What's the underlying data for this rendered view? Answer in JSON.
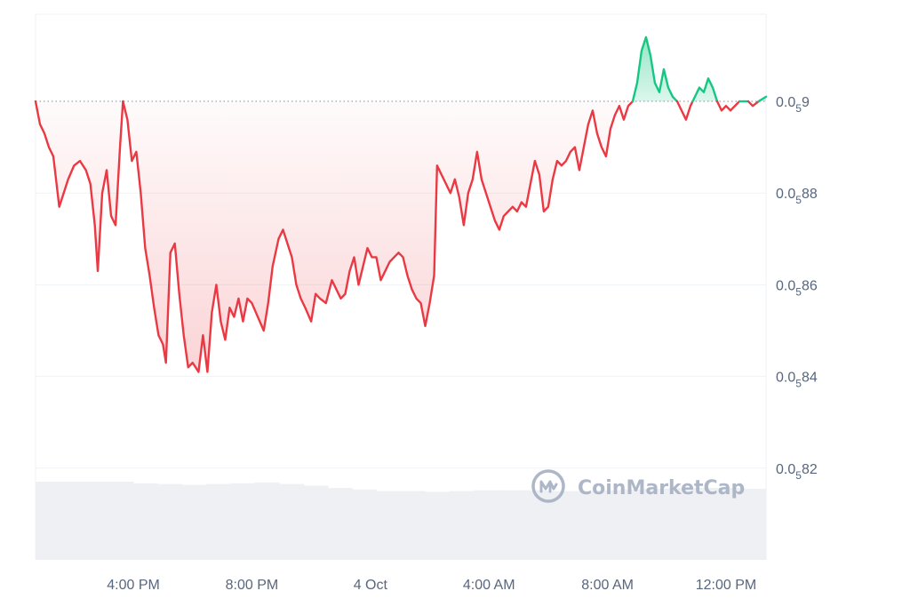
{
  "chart_data": {
    "type": "area",
    "title": "",
    "xlabel": "",
    "ylabel": "",
    "baseline": 9e-07,
    "y_tick_labels": [
      {
        "prefix": "0.0",
        "sub": "5",
        "suffix": "9",
        "value": 9e-07
      },
      {
        "prefix": "0.0",
        "sub": "5",
        "suffix": "88",
        "value": 8.8e-07
      },
      {
        "prefix": "0.0",
        "sub": "5",
        "suffix": "86",
        "value": 8.6e-07
      },
      {
        "prefix": "0.0",
        "sub": "5",
        "suffix": "84",
        "value": 8.4e-07
      },
      {
        "prefix": "0.0",
        "sub": "5",
        "suffix": "82",
        "value": 8.2e-07
      }
    ],
    "x_tick_labels": [
      {
        "label": "4:00 PM",
        "t": 3.3
      },
      {
        "label": "8:00 PM",
        "t": 7.3
      },
      {
        "label": "4 Oct",
        "t": 11.3
      },
      {
        "label": "4:00 AM",
        "t": 15.3
      },
      {
        "label": "8:00 AM",
        "t": 19.3
      },
      {
        "label": "12:00 PM",
        "t": 23.3
      }
    ],
    "x_range": [
      0,
      24.65
    ],
    "y_range_scaled": [
      0.8,
      0.919
    ],
    "price_series_scaled_e6": [
      [
        0.0,
        0.9
      ],
      [
        0.15,
        0.895
      ],
      [
        0.3,
        0.893
      ],
      [
        0.45,
        0.89
      ],
      [
        0.6,
        0.888
      ],
      [
        0.8,
        0.877
      ],
      [
        0.95,
        0.88
      ],
      [
        1.1,
        0.883
      ],
      [
        1.3,
        0.886
      ],
      [
        1.5,
        0.887
      ],
      [
        1.7,
        0.885
      ],
      [
        1.85,
        0.882
      ],
      [
        2.0,
        0.873
      ],
      [
        2.1,
        0.863
      ],
      [
        2.25,
        0.88
      ],
      [
        2.4,
        0.885
      ],
      [
        2.55,
        0.875
      ],
      [
        2.7,
        0.873
      ],
      [
        2.85,
        0.89
      ],
      [
        2.95,
        0.9
      ],
      [
        3.1,
        0.896
      ],
      [
        3.25,
        0.887
      ],
      [
        3.4,
        0.889
      ],
      [
        3.55,
        0.88
      ],
      [
        3.7,
        0.868
      ],
      [
        3.85,
        0.862
      ],
      [
        4.0,
        0.855
      ],
      [
        4.15,
        0.849
      ],
      [
        4.3,
        0.847
      ],
      [
        4.4,
        0.843
      ],
      [
        4.55,
        0.867
      ],
      [
        4.7,
        0.869
      ],
      [
        4.85,
        0.858
      ],
      [
        5.0,
        0.849
      ],
      [
        5.15,
        0.842
      ],
      [
        5.3,
        0.843
      ],
      [
        5.5,
        0.841
      ],
      [
        5.65,
        0.849
      ],
      [
        5.8,
        0.841
      ],
      [
        5.95,
        0.854
      ],
      [
        6.1,
        0.86
      ],
      [
        6.25,
        0.852
      ],
      [
        6.4,
        0.848
      ],
      [
        6.55,
        0.855
      ],
      [
        6.7,
        0.853
      ],
      [
        6.85,
        0.857
      ],
      [
        7.0,
        0.852
      ],
      [
        7.15,
        0.857
      ],
      [
        7.3,
        0.856
      ],
      [
        7.5,
        0.853
      ],
      [
        7.7,
        0.85
      ],
      [
        7.85,
        0.856
      ],
      [
        8.0,
        0.864
      ],
      [
        8.2,
        0.87
      ],
      [
        8.35,
        0.872
      ],
      [
        8.5,
        0.869
      ],
      [
        8.65,
        0.866
      ],
      [
        8.8,
        0.86
      ],
      [
        8.95,
        0.857
      ],
      [
        9.1,
        0.855
      ],
      [
        9.3,
        0.852
      ],
      [
        9.45,
        0.858
      ],
      [
        9.6,
        0.857
      ],
      [
        9.8,
        0.856
      ],
      [
        10.0,
        0.861
      ],
      [
        10.15,
        0.859
      ],
      [
        10.3,
        0.857
      ],
      [
        10.45,
        0.858
      ],
      [
        10.6,
        0.863
      ],
      [
        10.75,
        0.866
      ],
      [
        10.9,
        0.86
      ],
      [
        11.05,
        0.864
      ],
      [
        11.2,
        0.868
      ],
      [
        11.35,
        0.866
      ],
      [
        11.5,
        0.866
      ],
      [
        11.65,
        0.861
      ],
      [
        11.8,
        0.863
      ],
      [
        11.95,
        0.865
      ],
      [
        12.1,
        0.866
      ],
      [
        12.25,
        0.867
      ],
      [
        12.4,
        0.866
      ],
      [
        12.55,
        0.862
      ],
      [
        12.7,
        0.859
      ],
      [
        12.85,
        0.857
      ],
      [
        13.0,
        0.856
      ],
      [
        13.15,
        0.851
      ],
      [
        13.3,
        0.856
      ],
      [
        13.45,
        0.862
      ],
      [
        13.55,
        0.886
      ],
      [
        13.7,
        0.884
      ],
      [
        13.85,
        0.882
      ],
      [
        14.0,
        0.88
      ],
      [
        14.15,
        0.883
      ],
      [
        14.3,
        0.879
      ],
      [
        14.45,
        0.873
      ],
      [
        14.6,
        0.88
      ],
      [
        14.75,
        0.883
      ],
      [
        14.9,
        0.889
      ],
      [
        15.05,
        0.883
      ],
      [
        15.2,
        0.88
      ],
      [
        15.35,
        0.877
      ],
      [
        15.5,
        0.874
      ],
      [
        15.65,
        0.872
      ],
      [
        15.8,
        0.875
      ],
      [
        15.95,
        0.876
      ],
      [
        16.1,
        0.877
      ],
      [
        16.25,
        0.876
      ],
      [
        16.4,
        0.878
      ],
      [
        16.55,
        0.877
      ],
      [
        16.7,
        0.882
      ],
      [
        16.85,
        0.887
      ],
      [
        17.0,
        0.884
      ],
      [
        17.15,
        0.876
      ],
      [
        17.3,
        0.877
      ],
      [
        17.45,
        0.883
      ],
      [
        17.6,
        0.887
      ],
      [
        17.75,
        0.886
      ],
      [
        17.9,
        0.887
      ],
      [
        18.05,
        0.889
      ],
      [
        18.2,
        0.89
      ],
      [
        18.35,
        0.885
      ],
      [
        18.5,
        0.89
      ],
      [
        18.65,
        0.895
      ],
      [
        18.8,
        0.898
      ],
      [
        18.95,
        0.893
      ],
      [
        19.1,
        0.89
      ],
      [
        19.25,
        0.888
      ],
      [
        19.4,
        0.894
      ],
      [
        19.55,
        0.897
      ],
      [
        19.7,
        0.899
      ],
      [
        19.85,
        0.896
      ],
      [
        20.0,
        0.899
      ],
      [
        20.15,
        0.9
      ],
      [
        20.3,
        0.904
      ],
      [
        20.45,
        0.911
      ],
      [
        20.6,
        0.914
      ],
      [
        20.75,
        0.91
      ],
      [
        20.9,
        0.904
      ],
      [
        21.05,
        0.902
      ],
      [
        21.2,
        0.907
      ],
      [
        21.35,
        0.903
      ],
      [
        21.5,
        0.901
      ],
      [
        21.65,
        0.9
      ],
      [
        21.8,
        0.898
      ],
      [
        21.95,
        0.896
      ],
      [
        22.1,
        0.899
      ],
      [
        22.25,
        0.901
      ],
      [
        22.4,
        0.903
      ],
      [
        22.55,
        0.902
      ],
      [
        22.7,
        0.905
      ],
      [
        22.85,
        0.903
      ],
      [
        23.0,
        0.9
      ],
      [
        23.15,
        0.898
      ],
      [
        23.3,
        0.899
      ],
      [
        23.45,
        0.898
      ],
      [
        23.6,
        0.899
      ],
      [
        23.75,
        0.9
      ],
      [
        23.9,
        0.9
      ],
      [
        24.05,
        0.9
      ],
      [
        24.2,
        0.899
      ],
      [
        24.4,
        0.9
      ],
      [
        24.65,
        0.901
      ]
    ],
    "volume_relative": [
      1.0,
      1.0,
      1.0,
      1.0,
      0.98,
      0.97,
      0.96,
      0.97,
      0.98,
      0.99,
      0.97,
      0.95,
      0.92,
      0.9,
      0.88,
      0.88,
      0.87,
      0.88,
      0.89,
      0.89,
      0.89,
      0.88,
      0.88,
      0.89,
      0.9,
      0.91,
      0.92,
      0.92,
      0.92,
      0.91
    ],
    "colors": {
      "up": "#16c784",
      "down": "#ea3943",
      "up_fill": "#16c784",
      "down_fill": "#ea3943",
      "grid": "#eff2f5",
      "baseline": "#808a9d",
      "volume": "#eef0f3",
      "tick_text": "#58667e",
      "watermark": "#a6b0c3"
    },
    "grid": true,
    "legend": "none"
  },
  "watermark": {
    "brand": "CoinMarketCap",
    "logo_icon": "coinmarketcap-logo-icon"
  }
}
